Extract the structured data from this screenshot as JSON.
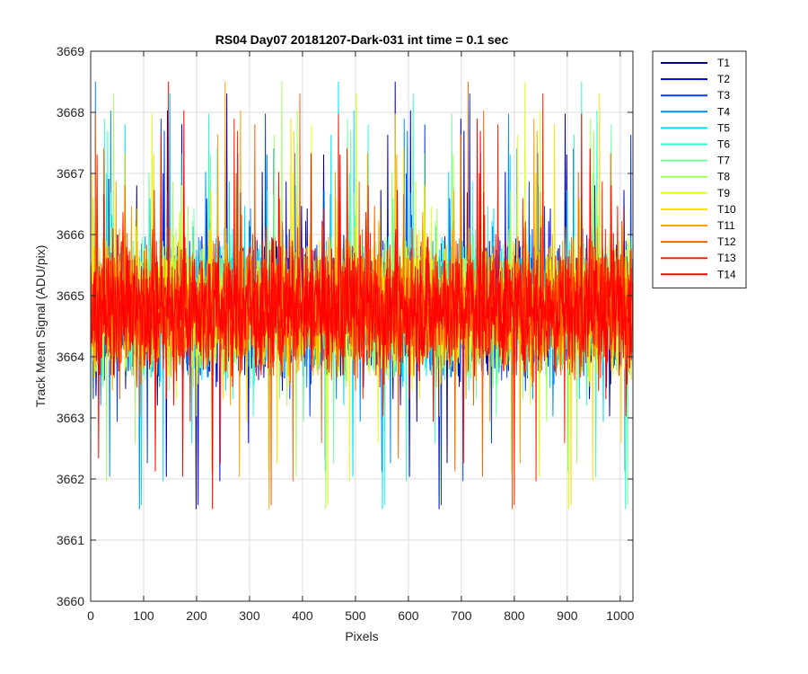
{
  "chart_data": {
    "type": "line",
    "title": "RS04 Day07 20181207-Dark-031 int time = 0.1 sec",
    "xlabel": "Pixels",
    "ylabel": "Track Mean Signal (ADU/pix)",
    "xlim": [
      0,
      1024
    ],
    "ylim": [
      3660,
      3669
    ],
    "xticks": [
      0,
      100,
      200,
      300,
      400,
      500,
      600,
      700,
      800,
      900,
      1000
    ],
    "yticks": [
      3660,
      3661,
      3662,
      3663,
      3664,
      3665,
      3666,
      3667,
      3668,
      3669
    ],
    "grid": true,
    "legend_position": "outside-top-right",
    "series_style": {
      "center": 3664.8,
      "spread": 0.7,
      "approx_min": 3660.25,
      "approx_max": 3669.0
    },
    "series": [
      {
        "name": "T1",
        "color": "#00008f"
      },
      {
        "name": "T2",
        "color": "#0000df"
      },
      {
        "name": "T3",
        "color": "#0040ff"
      },
      {
        "name": "T4",
        "color": "#0090ff"
      },
      {
        "name": "T5",
        "color": "#00dfff"
      },
      {
        "name": "T6",
        "color": "#30ffcf"
      },
      {
        "name": "T7",
        "color": "#70ffa0"
      },
      {
        "name": "T8",
        "color": "#a0ff60"
      },
      {
        "name": "T9",
        "color": "#dfff20"
      },
      {
        "name": "T10",
        "color": "#ffdf00"
      },
      {
        "name": "T11",
        "color": "#ffa000"
      },
      {
        "name": "T12",
        "color": "#ff6000"
      },
      {
        "name": "T13",
        "color": "#ff2000"
      },
      {
        "name": "T14",
        "color": "#ff0000"
      }
    ]
  }
}
